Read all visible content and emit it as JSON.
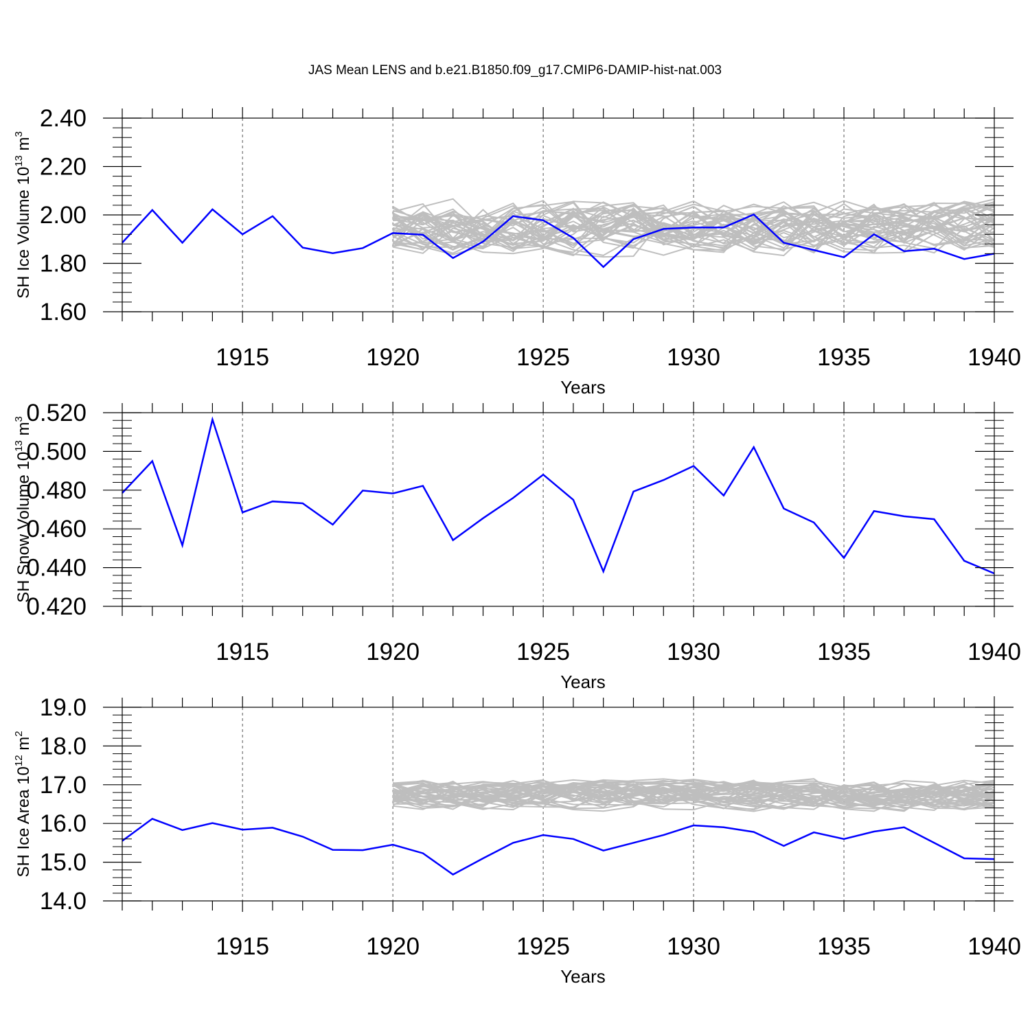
{
  "title": "JAS Mean LENS and b.e21.B1850.f09_g17.CMIP6-DAMIP-hist-nat.003",
  "colors": {
    "main": "#0000ff",
    "ensemble": "#bebebe",
    "axis": "#000000"
  },
  "chart_data": [
    {
      "type": "line",
      "ylabel": {
        "text": "SH Ice Volume 10",
        "exp": "13",
        "unit": " m",
        "unit_exp": "3"
      },
      "xlabel": "Years",
      "xlim": [
        1911,
        1940
      ],
      "ylim": [
        1.6,
        2.4
      ],
      "yticks": [
        1.6,
        1.8,
        2.0,
        2.2,
        2.4
      ],
      "ytick_labels": [
        "1.60",
        "1.80",
        "2.00",
        "2.20",
        "2.40"
      ],
      "xticks": [
        1915,
        1920,
        1925,
        1930,
        1935,
        1940
      ],
      "xtick_labels": [
        "1915",
        "1920",
        "1925",
        "1930",
        "1935",
        "1940"
      ],
      "ensemble": {
        "name": "LENS members",
        "start": 1920,
        "count": 40,
        "center": 1.95,
        "spread": 0.1,
        "seed": 17
      },
      "series": [
        {
          "name": "b.e21.B1850.f09_g17.CMIP6-DAMIP-hist-nat.003",
          "x": [
            1911,
            1912,
            1913,
            1914,
            1915,
            1916,
            1917,
            1918,
            1919,
            1920,
            1921,
            1922,
            1923,
            1924,
            1925,
            1926,
            1927,
            1928,
            1929,
            1930,
            1931,
            1932,
            1933,
            1934,
            1935,
            1936,
            1937,
            1938,
            1939,
            1940
          ],
          "values": [
            1.885,
            2.02,
            1.885,
            2.023,
            1.92,
            1.995,
            1.865,
            1.842,
            1.863,
            1.925,
            1.918,
            1.822,
            1.89,
            1.995,
            1.978,
            1.905,
            1.785,
            1.9,
            1.942,
            1.948,
            1.948,
            2.002,
            1.885,
            1.855,
            1.825,
            1.92,
            1.85,
            1.86,
            1.818,
            1.84
          ]
        }
      ]
    },
    {
      "type": "line",
      "ylabel": {
        "text": "SH Snow Volume 10",
        "exp": "13",
        "unit": " m",
        "unit_exp": "3"
      },
      "xlabel": "Years",
      "xlim": [
        1911,
        1940
      ],
      "ylim": [
        0.42,
        0.52
      ],
      "yticks": [
        0.42,
        0.44,
        0.46,
        0.48,
        0.5,
        0.52
      ],
      "ytick_labels": [
        "0.420",
        "0.440",
        "0.460",
        "0.480",
        "0.500",
        "0.520"
      ],
      "xticks": [
        1915,
        1920,
        1925,
        1930,
        1935,
        1940
      ],
      "xtick_labels": [
        "1915",
        "1920",
        "1925",
        "1930",
        "1935",
        "1940"
      ],
      "series": [
        {
          "name": "b.e21.B1850.f09_g17.CMIP6-DAMIP-hist-nat.003",
          "x": [
            1911,
            1912,
            1913,
            1914,
            1915,
            1916,
            1917,
            1918,
            1919,
            1920,
            1921,
            1922,
            1923,
            1924,
            1925,
            1926,
            1927,
            1928,
            1929,
            1930,
            1931,
            1932,
            1933,
            1934,
            1935,
            1936,
            1937,
            1938,
            1939,
            1940
          ],
          "values": [
            0.4785,
            0.495,
            0.4515,
            0.5165,
            0.4685,
            0.4742,
            0.4732,
            0.4622,
            0.4798,
            0.4783,
            0.4822,
            0.4542,
            0.4655,
            0.476,
            0.488,
            0.475,
            0.438,
            0.4793,
            0.4852,
            0.4925,
            0.4772,
            0.5022,
            0.4705,
            0.4633,
            0.445,
            0.4692,
            0.4665,
            0.465,
            0.4435,
            0.437
          ]
        }
      ]
    },
    {
      "type": "line",
      "ylabel": {
        "text": "SH Ice Area 10",
        "exp": "12",
        "unit": " m",
        "unit_exp": "2"
      },
      "xlabel": "Years",
      "xlim": [
        1911,
        1940
      ],
      "ylim": [
        14.0,
        19.0
      ],
      "yticks": [
        14,
        15,
        16,
        17,
        18,
        19
      ],
      "ytick_labels": [
        "14.0",
        "15.0",
        "16.0",
        "17.0",
        "18.0",
        "19.0"
      ],
      "xticks": [
        1915,
        1920,
        1925,
        1930,
        1935,
        1940
      ],
      "xtick_labels": [
        "1915",
        "1920",
        "1925",
        "1930",
        "1935",
        "1940"
      ],
      "ensemble": {
        "name": "LENS members",
        "start": 1920,
        "count": 40,
        "center": 16.75,
        "spread": 0.35,
        "seed": 29
      },
      "series": [
        {
          "name": "b.e21.B1850.f09_g17.CMIP6-DAMIP-hist-nat.003",
          "x": [
            1911,
            1912,
            1913,
            1914,
            1915,
            1916,
            1917,
            1918,
            1919,
            1920,
            1921,
            1922,
            1923,
            1924,
            1925,
            1926,
            1927,
            1928,
            1929,
            1930,
            1931,
            1932,
            1933,
            1934,
            1935,
            1936,
            1937,
            1938,
            1939,
            1940
          ],
          "values": [
            15.55,
            16.12,
            15.83,
            16.01,
            15.84,
            15.89,
            15.66,
            15.32,
            15.31,
            15.45,
            15.23,
            14.68,
            15.1,
            15.5,
            15.7,
            15.6,
            15.3,
            15.5,
            15.7,
            15.95,
            15.9,
            15.78,
            15.42,
            15.77,
            15.6,
            15.79,
            15.9,
            15.5,
            15.1,
            15.08
          ]
        }
      ]
    }
  ]
}
